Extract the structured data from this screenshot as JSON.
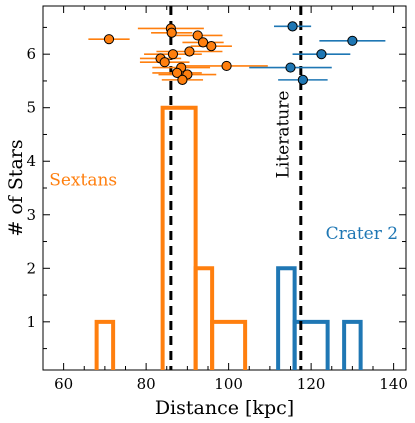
{
  "chart_data": {
    "type": "histogram+scatter",
    "title": "",
    "xlabel": "Distance [kpc]",
    "ylabel": "# of Stars",
    "xlim": [
      55,
      143
    ],
    "ylim": [
      0.1,
      6.9
    ],
    "xticks": [
      60,
      80,
      100,
      120,
      140
    ],
    "yticks": [
      1,
      2,
      3,
      4,
      5,
      6
    ],
    "grid": false,
    "histograms": [
      {
        "name": "Sextans",
        "color": "#ff7f0e",
        "bins": [
          [
            68,
            72,
            1
          ],
          [
            84,
            92,
            5
          ],
          [
            92,
            96,
            2
          ],
          [
            96,
            104,
            1
          ]
        ]
      },
      {
        "name": "Crater 2",
        "color": "#1f77b4",
        "bins": [
          [
            112,
            116,
            2
          ],
          [
            116,
            124,
            1
          ],
          [
            128,
            132,
            1
          ]
        ]
      }
    ],
    "scatter": [
      {
        "name": "Sextans",
        "color": "#ff7f0e",
        "points": [
          {
            "x": 71.0,
            "y": 6.28,
            "xerr": 5.0
          },
          {
            "x": 86.0,
            "y": 6.48,
            "xerr": 8.0
          },
          {
            "x": 86.2,
            "y": 6.4,
            "xerr": 5.0
          },
          {
            "x": 92.5,
            "y": 6.35,
            "xerr": 6.0
          },
          {
            "x": 93.8,
            "y": 6.22,
            "xerr": 5.0
          },
          {
            "x": 95.8,
            "y": 6.15,
            "xerr": 5.0
          },
          {
            "x": 86.5,
            "y": 6.0,
            "xerr": 7.0
          },
          {
            "x": 90.5,
            "y": 6.05,
            "xerr": 8.0
          },
          {
            "x": 83.5,
            "y": 5.92,
            "xerr": 5.0
          },
          {
            "x": 84.5,
            "y": 5.85,
            "xerr": 6.0
          },
          {
            "x": 88.5,
            "y": 5.75,
            "xerr": 7.0
          },
          {
            "x": 99.5,
            "y": 5.78,
            "xerr": 10.0
          },
          {
            "x": 87.5,
            "y": 5.65,
            "xerr": 6.0
          },
          {
            "x": 90.0,
            "y": 5.62,
            "xerr": 7.0
          },
          {
            "x": 88.8,
            "y": 5.52,
            "xerr": 5.0
          }
        ]
      },
      {
        "name": "Crater 2",
        "color": "#1f77b4",
        "points": [
          {
            "x": 115.5,
            "y": 6.52,
            "xerr": 4.5
          },
          {
            "x": 130.0,
            "y": 6.25,
            "xerr": 8.0
          },
          {
            "x": 122.5,
            "y": 6.0,
            "xerr": 7.0
          },
          {
            "x": 115.0,
            "y": 5.75,
            "xerr": 10.0
          },
          {
            "x": 118.0,
            "y": 5.52,
            "xerr": 6.0
          }
        ]
      }
    ],
    "vlines": [
      {
        "x": 86.0,
        "style": "dashed",
        "color": "#000000"
      },
      {
        "x": 117.5,
        "style": "dashed",
        "color": "#000000"
      }
    ],
    "annotations": [
      {
        "text": "Sextans",
        "color": "#ff7f0e",
        "x": 56.5,
        "y": 3.55,
        "rotation": 0,
        "anchor": "start"
      },
      {
        "text": "Crater 2",
        "color": "#1f77b4",
        "x": 123.5,
        "y": 2.55,
        "rotation": 0,
        "anchor": "start"
      },
      {
        "text": "Literature",
        "color": "#000000",
        "x": 114.5,
        "y": 4.5,
        "rotation": -90,
        "anchor": "middle"
      }
    ]
  }
}
